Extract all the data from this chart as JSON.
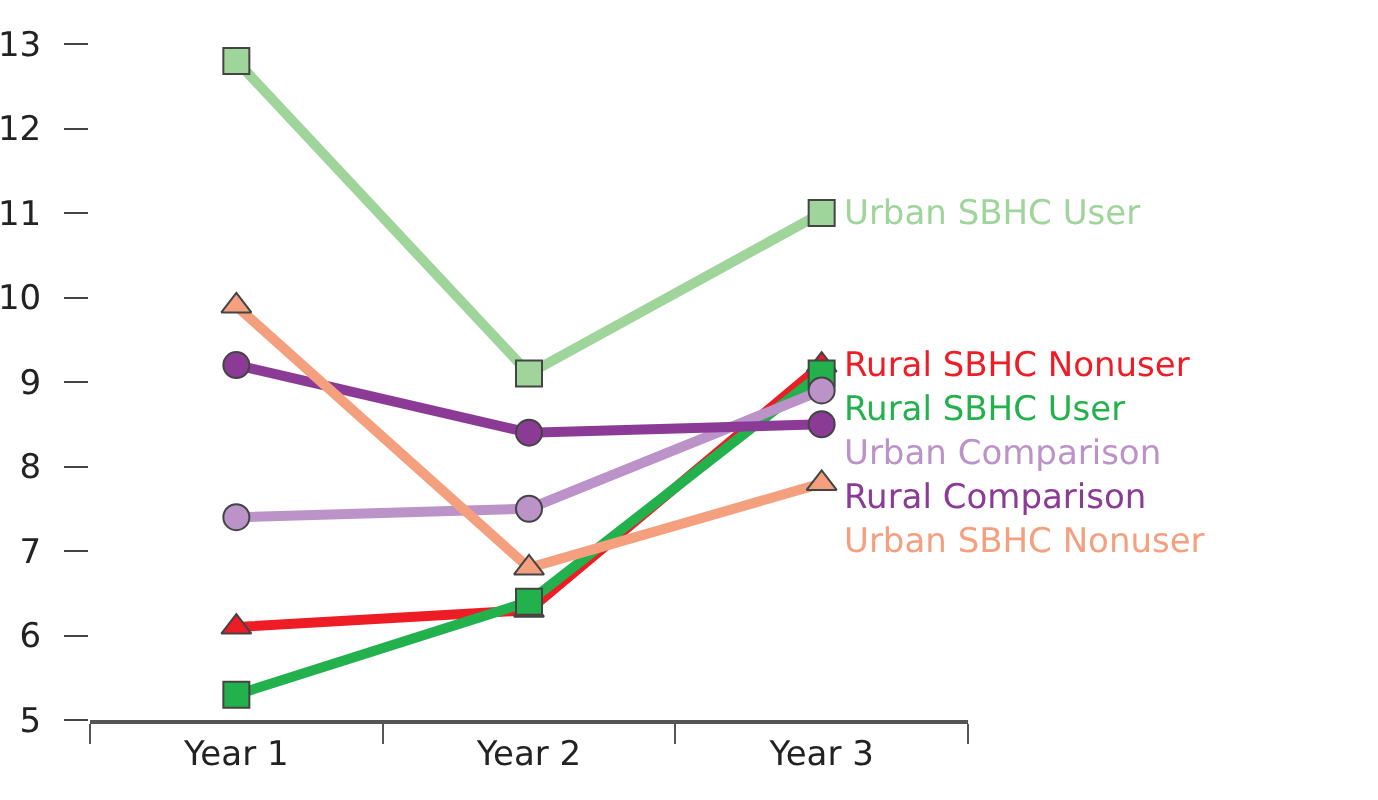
{
  "chart_data": {
    "type": "line",
    "categories": [
      "Year 1",
      "Year 2",
      "Year 3"
    ],
    "ylim": [
      5,
      13
    ],
    "yticks": [
      5,
      6,
      7,
      8,
      9,
      10,
      11,
      12,
      13
    ],
    "grid": false,
    "legend": false,
    "series": [
      {
        "name": "Urban SBHC User",
        "color": "#9fd49b",
        "marker": "square",
        "values": [
          12.8,
          9.1,
          11.0
        ]
      },
      {
        "name": "Rural SBHC Nonuser",
        "color": "#ee1c25",
        "marker": "triangle",
        "values": [
          6.1,
          6.3,
          9.2
        ]
      },
      {
        "name": "Rural SBHC User",
        "color": "#22b14c",
        "marker": "square",
        "values": [
          5.3,
          6.4,
          9.1
        ]
      },
      {
        "name": "Urban Comparison",
        "color": "#bb93c8",
        "marker": "circle",
        "values": [
          7.4,
          7.5,
          8.9
        ]
      },
      {
        "name": "Rural Comparison",
        "color": "#8b3a96",
        "marker": "circle",
        "values": [
          9.2,
          8.4,
          8.5
        ]
      },
      {
        "name": "Urban SBHC Nonuser",
        "color": "#f4a07f",
        "marker": "triangle",
        "values": [
          9.9,
          6.8,
          7.8
        ]
      }
    ]
  }
}
